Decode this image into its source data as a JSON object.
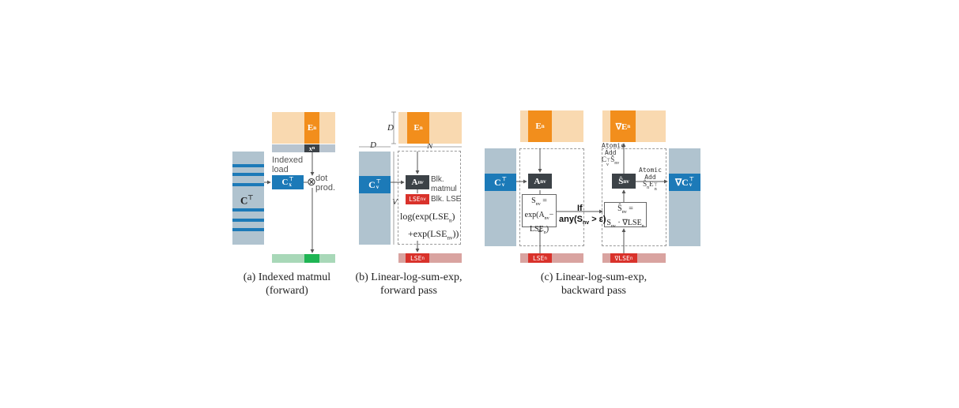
{
  "panel_a": {
    "caption_line1": "(a) Indexed matmul",
    "caption_line2": "(forward)",
    "label_ct": "C",
    "label_ct_sup": "⊤",
    "label_en": "E",
    "label_en_sub": "n",
    "label_xn": "x",
    "label_xn_sub": "n",
    "label_indexed": "Indexed",
    "label_load": "load",
    "label_cxn": "C",
    "label_cxn_sup": "⊤",
    "label_cxn_sub": "x",
    "label_dot": "dot",
    "label_prod": "prod.",
    "otimes": "⊗"
  },
  "panel_b": {
    "caption_line1": "(b) Linear-log-sum-exp,",
    "caption_line2": "forward pass",
    "label_D_top": "D",
    "label_D_left": "D",
    "label_N": "N",
    "label_V": "V",
    "label_en": "E",
    "label_en_sub": "n",
    "label_cv": "C",
    "label_cv_sup": "⊤",
    "label_cv_sub": "v",
    "label_anv": "A",
    "label_anv_sub": "nv",
    "label_blk": "Blk.",
    "label_matmul": "matmul",
    "label_lsenv": "LSE",
    "label_lsenv_sub": "nv",
    "label_blk_lse": "Blk. LSE",
    "formula_line1": "log(exp(LSE",
    "formula_line1_sub": "n",
    "formula_line1_end": ")",
    "formula_line2": "+exp(LSE",
    "formula_line2_sub": "nv",
    "formula_line2_end": "))",
    "label_lsen": "LSE",
    "label_lsen_sub": "n"
  },
  "panel_c": {
    "caption_line1": "(c) Linear-log-sum-exp,",
    "caption_line2": "backward pass",
    "label_en": "E",
    "label_en_sub": "n",
    "label_grad_en": "∇E",
    "label_grad_en_sub": "n",
    "label_cv": "C",
    "label_cv_sup": "⊤",
    "label_cv_sub": "v",
    "label_grad_cv": "∇C",
    "label_grad_cv_sup": "⊤",
    "label_grad_cv_sub": "v",
    "label_anv": "A",
    "label_anv_sub": "nv",
    "label_snv_hat": "Ŝ",
    "label_snv_hat_sub": "nv",
    "s_formula_1": "S",
    "s_formula_1_sub": "nv",
    "s_formula_1_end": " =",
    "s_formula_2": "exp(A",
    "s_formula_2_sub": "nv",
    "s_formula_2_end": "−",
    "s_formula_3": "LSE",
    "s_formula_3_sub": "n",
    "s_formula_3_end": ")",
    "shat_formula_1": "Ŝ",
    "shat_formula_1_sub": "nv",
    "shat_formula_1_end": " =",
    "shat_formula_2": "S",
    "shat_formula_2_sub": "nv",
    "shat_formula_2_end": " · ∇LSE",
    "shat_formula_2_sub2": "n",
    "label_if": "If",
    "label_any": "any(S",
    "label_any_sub": "nv",
    "label_any_end": " > ε)",
    "label_atomic1": "Atomic",
    "label_add1": "Add",
    "label_atomic1_expr": "C",
    "label_atomic1_expr_sup": "⊤",
    "label_atomic1_expr_sub": "v",
    "label_atomic1_expr2": "Ŝ",
    "label_atomic1_expr2_sub": "nv",
    "label_atomic2": "Atomic",
    "label_add2": "Add",
    "label_atomic2_expr": "Ŝ",
    "label_atomic2_expr_sub": "n",
    "label_atomic2_expr2": "E",
    "label_atomic2_expr2_sup": "⊤",
    "label_atomic2_expr2_sub": "n",
    "label_lsen": "LSE",
    "label_lsen_sub": "n",
    "label_grad_lsen": "∇LSE",
    "label_grad_lsen_sub": "n"
  },
  "colors": {
    "orange_light": "#f9d9b0",
    "orange": "#f28e1c",
    "gray_blue": "#b0c3cf",
    "gray_band": "#b8c4cf",
    "blue": "#1c7ab8",
    "dark": "#3c4247",
    "red": "#d9322b",
    "red_light": "#d9a3a0",
    "green_light": "#a8d8b8",
    "green": "#1fb554"
  }
}
